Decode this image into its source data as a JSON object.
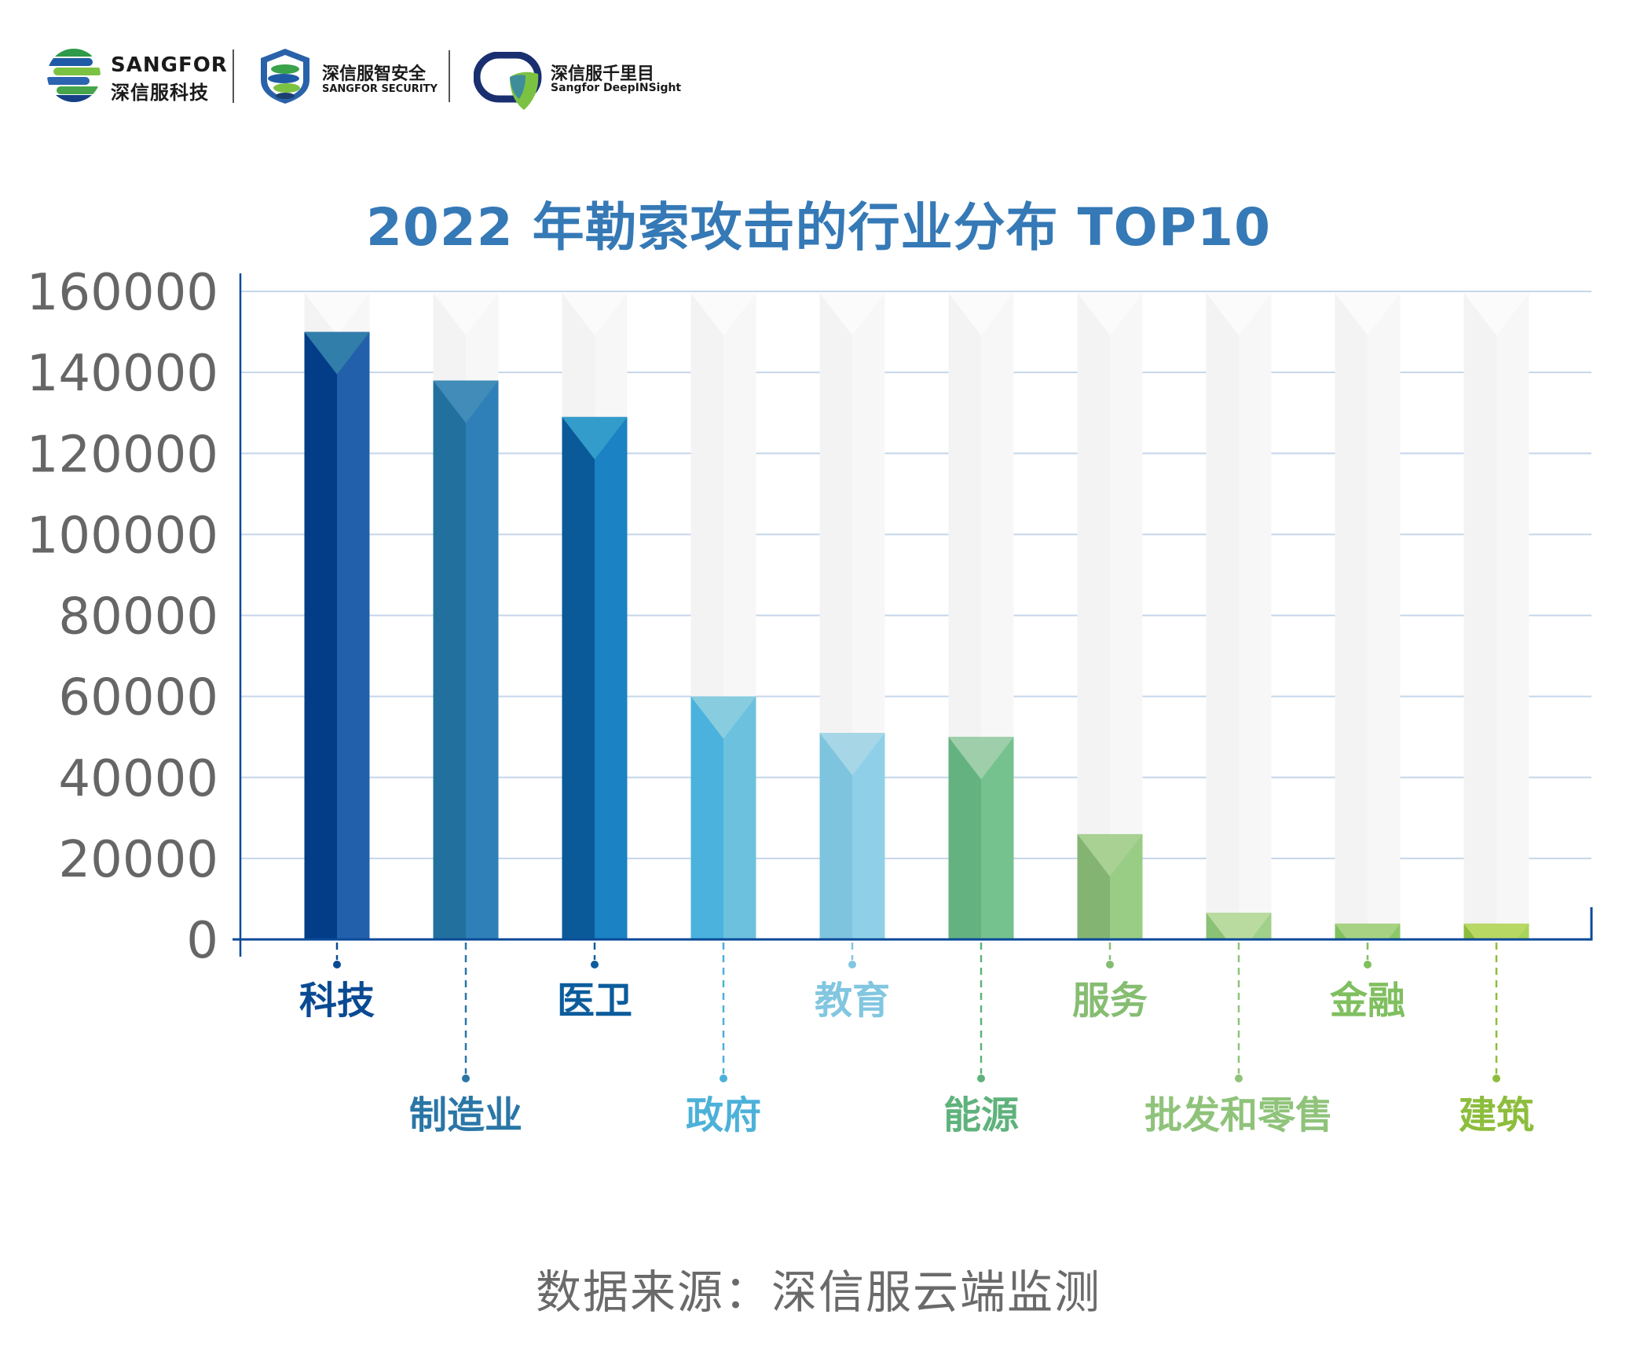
{
  "header": {
    "logos": [
      {
        "name": "sangfor-technologies",
        "line1": "SANGFOR",
        "line2": "深信服科技"
      },
      {
        "name": "sangfor-security",
        "line1": "深信服智安全",
        "line2": "SANGFOR SECURITY"
      },
      {
        "name": "sangfor-deepinsight",
        "line1": "深信服千里目",
        "line2": "Sangfor DeepINSight"
      }
    ]
  },
  "footer": {
    "source": "数据来源：深信服云端监测"
  },
  "chart_data": {
    "type": "bar",
    "title": "2022 年勒索攻击的行业分布 TOP10",
    "xlabel": "",
    "ylabel": "",
    "ylim": [
      0,
      160000
    ],
    "yticks": [
      0,
      20000,
      40000,
      60000,
      80000,
      100000,
      120000,
      140000,
      160000
    ],
    "ytick_labels": [
      "0",
      "20000",
      "40000",
      "60000",
      "80000",
      "100000",
      "120000",
      "140000",
      "160000"
    ],
    "grid": true,
    "legend": "none",
    "categories": [
      "科技",
      "制造业",
      "医卫",
      "政府",
      "教育",
      "能源",
      "服务",
      "批发和零售",
      "金融",
      "建筑"
    ],
    "values": [
      150000,
      138000,
      129000,
      60000,
      51000,
      50000,
      26000,
      6600,
      3900,
      3900
    ],
    "label_rows": [
      "upper",
      "lower",
      "upper",
      "lower",
      "upper",
      "lower",
      "upper",
      "lower",
      "upper",
      "lower"
    ],
    "colors": [
      {
        "left": "#033d87",
        "right": "#2260ab",
        "cap": "#327eab",
        "label": "#0a4a93"
      },
      {
        "left": "#22709d",
        "right": "#2f80b8",
        "cap": "#418cb8",
        "label": "#2a76a6"
      },
      {
        "left": "#0a5a99",
        "right": "#1b82c3",
        "cap": "#349ccb",
        "label": "#0c5c9c"
      },
      {
        "left": "#4ab2dc",
        "right": "#6cc2de",
        "cap": "#88cce0",
        "label": "#4cb1d9"
      },
      {
        "left": "#7fc4df",
        "right": "#8fd0e8",
        "cap": "#a7d7e6",
        "label": "#82c6e0"
      },
      {
        "left": "#64b280",
        "right": "#75c28e",
        "cap": "#9ecfaa",
        "label": "#5fb27c"
      },
      {
        "left": "#84b472",
        "right": "#99cc85",
        "cap": "#a9d194",
        "label": "#86bd71"
      },
      {
        "left": "#8ac175",
        "right": "#a0d08a",
        "cap": "#badb9f",
        "label": "#8fc37a"
      },
      {
        "left": "#7fc05f",
        "right": "#8cc868",
        "cap": "#a8d283",
        "label": "#7fbf5f"
      },
      {
        "left": "#8cbc3f",
        "right": "#a8d45a",
        "cap": "#b7d862",
        "label": "#8dbd3d"
      }
    ],
    "axis_color": "#0a4a9a",
    "grid_color": "#c5d6ea"
  }
}
